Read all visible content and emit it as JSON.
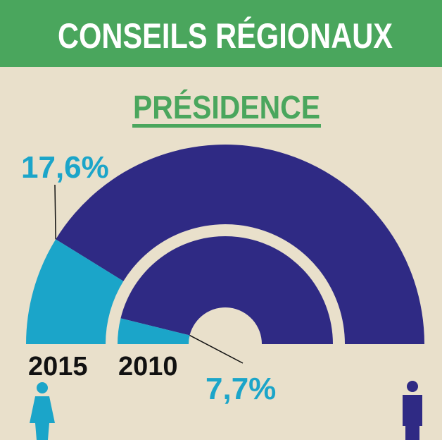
{
  "chart_data": {
    "type": "half-donut",
    "title": "CONSEILS RÉGIONAUX",
    "subtitle": "PRÉSIDENCE",
    "series": [
      {
        "name": "2015",
        "values": [
          17.6
        ],
        "value_labels": [
          "17,6%"
        ]
      },
      {
        "name": "2010",
        "values": [
          7.7
        ],
        "value_labels": [
          "7,7%"
        ]
      }
    ],
    "colors": [
      "#1ba5c9",
      "#2f2a84"
    ]
  }
}
